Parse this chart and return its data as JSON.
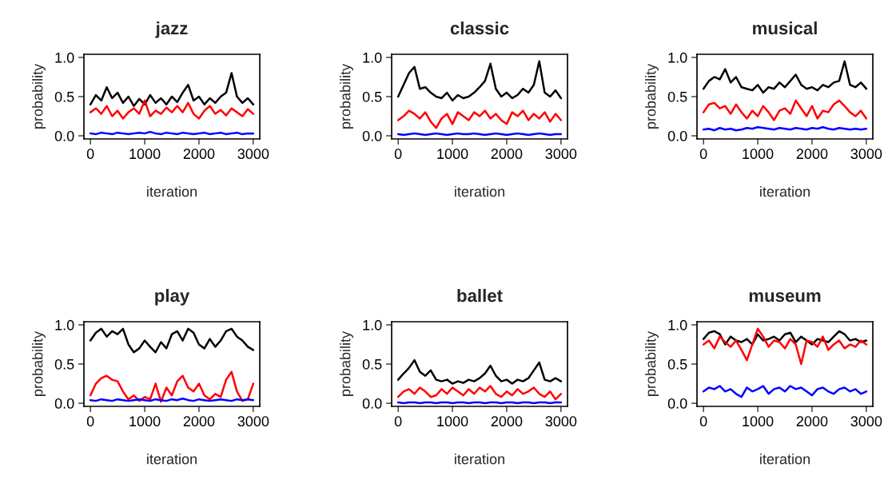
{
  "chart_data": [
    {
      "type": "line",
      "title": "jazz",
      "xlabel": "iteration",
      "ylabel": "probability",
      "x": [
        0,
        100,
        200,
        300,
        400,
        500,
        600,
        700,
        800,
        900,
        1000,
        1100,
        1200,
        1300,
        1400,
        1500,
        1600,
        1700,
        1800,
        1900,
        2000,
        2100,
        2200,
        2300,
        2400,
        2500,
        2600,
        2700,
        2800,
        2900,
        3000
      ],
      "xlim": [
        -120,
        3120
      ],
      "ylim": [
        -0.04,
        1.04
      ],
      "xticks": [
        0,
        1000,
        2000,
        3000
      ],
      "yticks": [
        {
          "value": 0,
          "label": "0.0"
        },
        {
          "value": 0.5,
          "label": "0.5"
        },
        {
          "value": 1,
          "label": "1.0"
        }
      ],
      "series": [
        {
          "color": "#000000",
          "values": [
            0.4,
            0.52,
            0.45,
            0.62,
            0.48,
            0.55,
            0.42,
            0.5,
            0.38,
            0.47,
            0.4,
            0.52,
            0.42,
            0.48,
            0.4,
            0.5,
            0.43,
            0.55,
            0.65,
            0.45,
            0.5,
            0.4,
            0.48,
            0.42,
            0.5,
            0.55,
            0.8,
            0.5,
            0.42,
            0.48,
            0.4
          ]
        },
        {
          "color": "#ff0000",
          "values": [
            0.3,
            0.35,
            0.28,
            0.38,
            0.25,
            0.32,
            0.22,
            0.3,
            0.35,
            0.28,
            0.45,
            0.25,
            0.32,
            0.28,
            0.36,
            0.3,
            0.38,
            0.3,
            0.42,
            0.28,
            0.22,
            0.32,
            0.38,
            0.28,
            0.33,
            0.26,
            0.35,
            0.3,
            0.25,
            0.34,
            0.28
          ]
        },
        {
          "color": "#0000ff",
          "values": [
            0.03,
            0.02,
            0.04,
            0.03,
            0.02,
            0.04,
            0.03,
            0.02,
            0.03,
            0.04,
            0.03,
            0.05,
            0.03,
            0.02,
            0.04,
            0.03,
            0.02,
            0.04,
            0.03,
            0.02,
            0.03,
            0.04,
            0.02,
            0.03,
            0.04,
            0.02,
            0.03,
            0.04,
            0.02,
            0.03,
            0.03
          ]
        }
      ]
    },
    {
      "type": "line",
      "title": "classic",
      "xlabel": "iteration",
      "ylabel": "probability",
      "x": [
        0,
        100,
        200,
        300,
        400,
        500,
        600,
        700,
        800,
        900,
        1000,
        1100,
        1200,
        1300,
        1400,
        1500,
        1600,
        1700,
        1800,
        1900,
        2000,
        2100,
        2200,
        2300,
        2400,
        2500,
        2600,
        2700,
        2800,
        2900,
        3000
      ],
      "xlim": [
        -120,
        3120
      ],
      "ylim": [
        -0.04,
        1.04
      ],
      "xticks": [
        0,
        1000,
        2000,
        3000
      ],
      "yticks": [
        {
          "value": 0,
          "label": "0.0"
        },
        {
          "value": 0.5,
          "label": "0.5"
        },
        {
          "value": 1,
          "label": "1.0"
        }
      ],
      "series": [
        {
          "color": "#000000",
          "values": [
            0.5,
            0.65,
            0.8,
            0.88,
            0.6,
            0.62,
            0.55,
            0.5,
            0.48,
            0.55,
            0.45,
            0.52,
            0.48,
            0.5,
            0.55,
            0.62,
            0.7,
            0.92,
            0.6,
            0.5,
            0.55,
            0.48,
            0.52,
            0.6,
            0.55,
            0.65,
            0.95,
            0.55,
            0.5,
            0.58,
            0.48
          ]
        },
        {
          "color": "#ff0000",
          "values": [
            0.2,
            0.25,
            0.32,
            0.28,
            0.22,
            0.3,
            0.18,
            0.1,
            0.22,
            0.28,
            0.15,
            0.3,
            0.25,
            0.2,
            0.3,
            0.25,
            0.32,
            0.22,
            0.28,
            0.2,
            0.15,
            0.3,
            0.25,
            0.32,
            0.2,
            0.28,
            0.22,
            0.3,
            0.18,
            0.28,
            0.2
          ]
        },
        {
          "color": "#0000ff",
          "values": [
            0.02,
            0.01,
            0.02,
            0.03,
            0.02,
            0.01,
            0.02,
            0.03,
            0.02,
            0.01,
            0.02,
            0.03,
            0.02,
            0.02,
            0.03,
            0.02,
            0.01,
            0.02,
            0.03,
            0.02,
            0.01,
            0.02,
            0.03,
            0.02,
            0.01,
            0.02,
            0.03,
            0.02,
            0.01,
            0.02,
            0.02
          ]
        }
      ]
    },
    {
      "type": "line",
      "title": "musical",
      "xlabel": "iteration",
      "ylabel": "probability",
      "x": [
        0,
        100,
        200,
        300,
        400,
        500,
        600,
        700,
        800,
        900,
        1000,
        1100,
        1200,
        1300,
        1400,
        1500,
        1600,
        1700,
        1800,
        1900,
        2000,
        2100,
        2200,
        2300,
        2400,
        2500,
        2600,
        2700,
        2800,
        2900,
        3000
      ],
      "xlim": [
        -120,
        3120
      ],
      "ylim": [
        -0.04,
        1.04
      ],
      "xticks": [
        0,
        1000,
        2000,
        3000
      ],
      "yticks": [
        {
          "value": 0,
          "label": "0.0"
        },
        {
          "value": 0.5,
          "label": "0.5"
        },
        {
          "value": 1,
          "label": "1.0"
        }
      ],
      "series": [
        {
          "color": "#000000",
          "values": [
            0.6,
            0.7,
            0.75,
            0.72,
            0.85,
            0.68,
            0.75,
            0.62,
            0.6,
            0.58,
            0.65,
            0.55,
            0.62,
            0.6,
            0.68,
            0.62,
            0.7,
            0.78,
            0.65,
            0.6,
            0.62,
            0.58,
            0.65,
            0.62,
            0.68,
            0.7,
            0.95,
            0.65,
            0.62,
            0.68,
            0.6
          ]
        },
        {
          "color": "#ff0000",
          "values": [
            0.3,
            0.4,
            0.42,
            0.35,
            0.38,
            0.28,
            0.4,
            0.3,
            0.22,
            0.32,
            0.25,
            0.38,
            0.3,
            0.2,
            0.32,
            0.35,
            0.28,
            0.45,
            0.35,
            0.25,
            0.38,
            0.22,
            0.32,
            0.3,
            0.4,
            0.45,
            0.38,
            0.3,
            0.25,
            0.32,
            0.22
          ]
        },
        {
          "color": "#0000ff",
          "values": [
            0.08,
            0.09,
            0.07,
            0.1,
            0.08,
            0.09,
            0.07,
            0.08,
            0.1,
            0.09,
            0.11,
            0.1,
            0.09,
            0.08,
            0.1,
            0.09,
            0.08,
            0.1,
            0.09,
            0.08,
            0.1,
            0.09,
            0.11,
            0.09,
            0.08,
            0.1,
            0.09,
            0.08,
            0.09,
            0.08,
            0.09
          ]
        }
      ]
    },
    {
      "type": "line",
      "title": "play",
      "xlabel": "iteration",
      "ylabel": "probability",
      "x": [
        0,
        100,
        200,
        300,
        400,
        500,
        600,
        700,
        800,
        900,
        1000,
        1100,
        1200,
        1300,
        1400,
        1500,
        1600,
        1700,
        1800,
        1900,
        2000,
        2100,
        2200,
        2300,
        2400,
        2500,
        2600,
        2700,
        2800,
        2900,
        3000
      ],
      "xlim": [
        -120,
        3120
      ],
      "ylim": [
        -0.04,
        1.04
      ],
      "xticks": [
        0,
        1000,
        2000,
        3000
      ],
      "yticks": [
        {
          "value": 0,
          "label": "0.0"
        },
        {
          "value": 0.5,
          "label": "0.5"
        },
        {
          "value": 1,
          "label": "1.0"
        }
      ],
      "series": [
        {
          "color": "#000000",
          "values": [
            0.8,
            0.9,
            0.95,
            0.85,
            0.92,
            0.88,
            0.95,
            0.75,
            0.65,
            0.7,
            0.8,
            0.72,
            0.65,
            0.78,
            0.7,
            0.88,
            0.92,
            0.8,
            0.95,
            0.9,
            0.75,
            0.7,
            0.82,
            0.72,
            0.8,
            0.92,
            0.95,
            0.85,
            0.8,
            0.72,
            0.68
          ]
        },
        {
          "color": "#ff0000",
          "values": [
            0.1,
            0.25,
            0.32,
            0.35,
            0.3,
            0.28,
            0.15,
            0.05,
            0.1,
            0.03,
            0.08,
            0.05,
            0.25,
            0.02,
            0.2,
            0.1,
            0.28,
            0.35,
            0.2,
            0.15,
            0.25,
            0.1,
            0.05,
            0.12,
            0.08,
            0.3,
            0.4,
            0.15,
            0.03,
            0.05,
            0.25
          ]
        },
        {
          "color": "#0000ff",
          "values": [
            0.04,
            0.03,
            0.05,
            0.04,
            0.03,
            0.05,
            0.04,
            0.03,
            0.04,
            0.05,
            0.04,
            0.03,
            0.05,
            0.04,
            0.03,
            0.05,
            0.04,
            0.06,
            0.04,
            0.03,
            0.05,
            0.04,
            0.03,
            0.04,
            0.05,
            0.04,
            0.03,
            0.05,
            0.04,
            0.05,
            0.04
          ]
        }
      ]
    },
    {
      "type": "line",
      "title": "ballet",
      "xlabel": "iteration",
      "ylabel": "probability",
      "x": [
        0,
        100,
        200,
        300,
        400,
        500,
        600,
        700,
        800,
        900,
        1000,
        1100,
        1200,
        1300,
        1400,
        1500,
        1600,
        1700,
        1800,
        1900,
        2000,
        2100,
        2200,
        2300,
        2400,
        2500,
        2600,
        2700,
        2800,
        2900,
        3000
      ],
      "xlim": [
        -120,
        3120
      ],
      "ylim": [
        -0.04,
        1.04
      ],
      "xticks": [
        0,
        1000,
        2000,
        3000
      ],
      "yticks": [
        {
          "value": 0,
          "label": "0.0"
        },
        {
          "value": 0.5,
          "label": "0.5"
        },
        {
          "value": 1,
          "label": "1.0"
        }
      ],
      "series": [
        {
          "color": "#000000",
          "values": [
            0.3,
            0.38,
            0.45,
            0.55,
            0.4,
            0.35,
            0.42,
            0.3,
            0.28,
            0.3,
            0.25,
            0.28,
            0.26,
            0.3,
            0.28,
            0.32,
            0.38,
            0.48,
            0.35,
            0.28,
            0.3,
            0.25,
            0.3,
            0.28,
            0.32,
            0.42,
            0.52,
            0.3,
            0.28,
            0.32,
            0.28
          ]
        },
        {
          "color": "#ff0000",
          "values": [
            0.08,
            0.15,
            0.18,
            0.12,
            0.2,
            0.15,
            0.08,
            0.1,
            0.18,
            0.12,
            0.2,
            0.15,
            0.1,
            0.18,
            0.12,
            0.2,
            0.15,
            0.22,
            0.12,
            0.08,
            0.15,
            0.1,
            0.18,
            0.12,
            0.15,
            0.2,
            0.12,
            0.08,
            0.15,
            0.05,
            0.12
          ]
        },
        {
          "color": "#0000ff",
          "values": [
            0.01,
            0.0,
            0.01,
            0.01,
            0.0,
            0.01,
            0.01,
            0.0,
            0.01,
            0.01,
            0.0,
            0.01,
            0.01,
            0.0,
            0.01,
            0.01,
            0.0,
            0.01,
            0.01,
            0.0,
            0.01,
            0.01,
            0.0,
            0.01,
            0.01,
            0.0,
            0.01,
            0.01,
            0.0,
            0.01,
            0.01
          ]
        }
      ]
    },
    {
      "type": "line",
      "title": "museum",
      "xlabel": "iteration",
      "ylabel": "probability",
      "x": [
        0,
        100,
        200,
        300,
        400,
        500,
        600,
        700,
        800,
        900,
        1000,
        1100,
        1200,
        1300,
        1400,
        1500,
        1600,
        1700,
        1800,
        1900,
        2000,
        2100,
        2200,
        2300,
        2400,
        2500,
        2600,
        2700,
        2800,
        2900,
        3000
      ],
      "xlim": [
        -120,
        3120
      ],
      "ylim": [
        -0.04,
        1.04
      ],
      "xticks": [
        0,
        1000,
        2000,
        3000
      ],
      "yticks": [
        {
          "value": 0,
          "label": "0.0"
        },
        {
          "value": 0.5,
          "label": "0.5"
        },
        {
          "value": 1,
          "label": "1.0"
        }
      ],
      "series": [
        {
          "color": "#000000",
          "values": [
            0.82,
            0.9,
            0.92,
            0.88,
            0.75,
            0.85,
            0.8,
            0.78,
            0.82,
            0.75,
            0.88,
            0.8,
            0.82,
            0.85,
            0.8,
            0.88,
            0.9,
            0.78,
            0.85,
            0.8,
            0.75,
            0.82,
            0.8,
            0.78,
            0.85,
            0.92,
            0.88,
            0.8,
            0.82,
            0.78,
            0.8
          ]
        },
        {
          "color": "#ff0000",
          "values": [
            0.75,
            0.8,
            0.7,
            0.85,
            0.78,
            0.72,
            0.8,
            0.68,
            0.55,
            0.75,
            0.95,
            0.85,
            0.72,
            0.8,
            0.78,
            0.7,
            0.82,
            0.75,
            0.5,
            0.8,
            0.78,
            0.72,
            0.85,
            0.68,
            0.75,
            0.8,
            0.7,
            0.75,
            0.72,
            0.8,
            0.75
          ]
        },
        {
          "color": "#0000ff",
          "values": [
            0.15,
            0.2,
            0.18,
            0.22,
            0.15,
            0.18,
            0.12,
            0.08,
            0.2,
            0.15,
            0.18,
            0.22,
            0.12,
            0.18,
            0.2,
            0.15,
            0.22,
            0.18,
            0.2,
            0.15,
            0.1,
            0.18,
            0.2,
            0.15,
            0.12,
            0.18,
            0.2,
            0.15,
            0.18,
            0.12,
            0.15
          ]
        }
      ]
    }
  ]
}
